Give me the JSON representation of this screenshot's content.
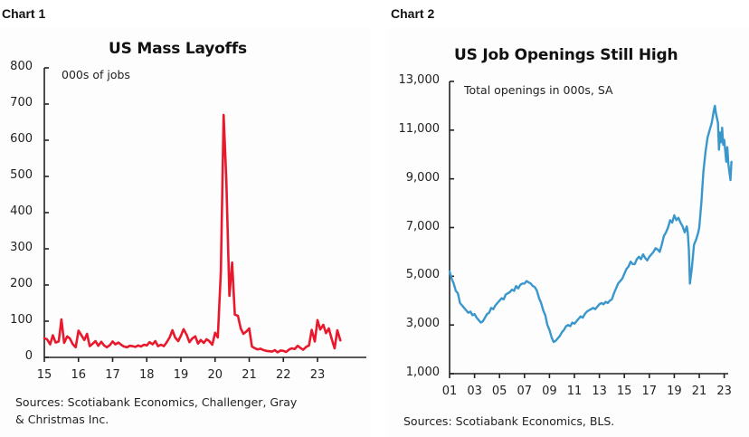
{
  "labels": {
    "chart1": "Chart 1",
    "chart2": "Chart 2"
  },
  "chart_data": [
    {
      "type": "line",
      "title": "US Mass Layoffs",
      "unit_note": "000s of jobs",
      "xlabel": "",
      "ylabel": "",
      "ylim": [
        0,
        800
      ],
      "yticks": [
        "0",
        "100",
        "200",
        "300",
        "400",
        "500",
        "600",
        "700",
        "800"
      ],
      "xticks": [
        "15",
        "16",
        "17",
        "18",
        "19",
        "20",
        "21",
        "22",
        "23"
      ],
      "xlim": [
        2015,
        2023.95
      ],
      "grid": false,
      "source": "Sources: Scotiabank Economics, Challenger, Gray & Christmas Inc.",
      "source_lines": [
        "Sources: Scotiabank Economics, Challenger, Gray",
        "& Christmas Inc."
      ],
      "color": "#e8192c",
      "series": [
        {
          "name": "US Mass Layoffs",
          "points": [
            [
              2015.0,
              53
            ],
            [
              2015.08,
              50
            ],
            [
              2015.17,
              36
            ],
            [
              2015.25,
              61
            ],
            [
              2015.33,
              41
            ],
            [
              2015.42,
              44
            ],
            [
              2015.5,
              105
            ],
            [
              2015.58,
              40
            ],
            [
              2015.67,
              58
            ],
            [
              2015.75,
              52
            ],
            [
              2015.83,
              37
            ],
            [
              2015.92,
              28
            ],
            [
              2016.0,
              74
            ],
            [
              2016.08,
              62
            ],
            [
              2016.17,
              48
            ],
            [
              2016.25,
              65
            ],
            [
              2016.33,
              31
            ],
            [
              2016.42,
              38
            ],
            [
              2016.5,
              45
            ],
            [
              2016.58,
              32
            ],
            [
              2016.67,
              43
            ],
            [
              2016.75,
              33
            ],
            [
              2016.83,
              28
            ],
            [
              2016.92,
              34
            ],
            [
              2017.0,
              44
            ],
            [
              2017.08,
              36
            ],
            [
              2017.17,
              41
            ],
            [
              2017.25,
              35
            ],
            [
              2017.33,
              30
            ],
            [
              2017.42,
              28
            ],
            [
              2017.5,
              32
            ],
            [
              2017.58,
              31
            ],
            [
              2017.67,
              29
            ],
            [
              2017.75,
              33
            ],
            [
              2017.83,
              30
            ],
            [
              2017.92,
              35
            ],
            [
              2018.0,
              33
            ],
            [
              2018.08,
              42
            ],
            [
              2018.17,
              36
            ],
            [
              2018.25,
              45
            ],
            [
              2018.33,
              31
            ],
            [
              2018.42,
              35
            ],
            [
              2018.5,
              31
            ],
            [
              2018.58,
              41
            ],
            [
              2018.67,
              55
            ],
            [
              2018.75,
              75
            ],
            [
              2018.83,
              55
            ],
            [
              2018.92,
              45
            ],
            [
              2019.0,
              60
            ],
            [
              2019.08,
              78
            ],
            [
              2019.17,
              62
            ],
            [
              2019.25,
              42
            ],
            [
              2019.33,
              52
            ],
            [
              2019.42,
              58
            ],
            [
              2019.5,
              38
            ],
            [
              2019.58,
              48
            ],
            [
              2019.67,
              40
            ],
            [
              2019.75,
              50
            ],
            [
              2019.83,
              45
            ],
            [
              2019.92,
              35
            ],
            [
              2020.0,
              68
            ],
            [
              2020.08,
              55
            ],
            [
              2020.17,
              240
            ],
            [
              2020.25,
              670
            ],
            [
              2020.33,
              490
            ],
            [
              2020.42,
              170
            ],
            [
              2020.5,
              262
            ],
            [
              2020.58,
              118
            ],
            [
              2020.67,
              115
            ],
            [
              2020.75,
              80
            ],
            [
              2020.83,
              65
            ],
            [
              2020.92,
              72
            ],
            [
              2021.0,
              80
            ],
            [
              2021.08,
              30
            ],
            [
              2021.17,
              25
            ],
            [
              2021.25,
              22
            ],
            [
              2021.33,
              24
            ],
            [
              2021.42,
              20
            ],
            [
              2021.5,
              18
            ],
            [
              2021.58,
              17
            ],
            [
              2021.67,
              16
            ],
            [
              2021.75,
              20
            ],
            [
              2021.83,
              14
            ],
            [
              2021.92,
              19
            ],
            [
              2022.0,
              18
            ],
            [
              2022.08,
              15
            ],
            [
              2022.17,
              22
            ],
            [
              2022.25,
              25
            ],
            [
              2022.33,
              23
            ],
            [
              2022.42,
              32
            ],
            [
              2022.5,
              26
            ],
            [
              2022.58,
              21
            ],
            [
              2022.67,
              29
            ],
            [
              2022.75,
              33
            ],
            [
              2022.83,
              76
            ],
            [
              2022.92,
              44
            ],
            [
              2023.0,
              103
            ],
            [
              2023.08,
              77
            ],
            [
              2023.17,
              90
            ],
            [
              2023.25,
              67
            ],
            [
              2023.33,
              80
            ],
            [
              2023.42,
              49
            ],
            [
              2023.5,
              25
            ],
            [
              2023.58,
              75
            ],
            [
              2023.67,
              47
            ]
          ]
        }
      ]
    },
    {
      "type": "line",
      "title": "US Job Openings Still High",
      "unit_note": "Total openings in 000s, SA",
      "xlabel": "",
      "ylabel": "",
      "ylim": [
        1000,
        13000
      ],
      "yticks": [
        "1,000",
        "3,000",
        "5,000",
        "7,000",
        "9,000",
        "11,000",
        "13,000"
      ],
      "xticks": [
        "01",
        "03",
        "05",
        "07",
        "09",
        "11",
        "13",
        "15",
        "17",
        "19",
        "21",
        "23"
      ],
      "xlim": [
        2001,
        2023.95
      ],
      "grid": false,
      "source": "Sources: Scotiabank Economics, BLS.",
      "source_lines": [
        "Sources: Scotiabank Economics, BLS."
      ],
      "color": "#3a97cc",
      "series": [
        {
          "name": "Total job openings",
          "points": [
            [
              2001.0,
              5200
            ],
            [
              2001.17,
              4900
            ],
            [
              2001.33,
              4700
            ],
            [
              2001.5,
              4400
            ],
            [
              2001.67,
              4300
            ],
            [
              2001.83,
              3900
            ],
            [
              2002.0,
              3800
            ],
            [
              2002.17,
              3700
            ],
            [
              2002.33,
              3600
            ],
            [
              2002.5,
              3500
            ],
            [
              2002.67,
              3550
            ],
            [
              2002.83,
              3400
            ],
            [
              2003.0,
              3450
            ],
            [
              2003.17,
              3300
            ],
            [
              2003.33,
              3200
            ],
            [
              2003.5,
              3100
            ],
            [
              2003.67,
              3150
            ],
            [
              2003.83,
              3300
            ],
            [
              2004.0,
              3450
            ],
            [
              2004.17,
              3500
            ],
            [
              2004.33,
              3700
            ],
            [
              2004.5,
              3650
            ],
            [
              2004.67,
              3800
            ],
            [
              2004.83,
              3900
            ],
            [
              2005.0,
              4000
            ],
            [
              2005.17,
              4100
            ],
            [
              2005.33,
              4050
            ],
            [
              2005.5,
              4250
            ],
            [
              2005.67,
              4300
            ],
            [
              2005.83,
              4350
            ],
            [
              2006.0,
              4450
            ],
            [
              2006.17,
              4400
            ],
            [
              2006.33,
              4600
            ],
            [
              2006.5,
              4500
            ],
            [
              2006.67,
              4650
            ],
            [
              2006.83,
              4700
            ],
            [
              2007.0,
              4700
            ],
            [
              2007.17,
              4800
            ],
            [
              2007.33,
              4750
            ],
            [
              2007.5,
              4700
            ],
            [
              2007.67,
              4600
            ],
            [
              2007.83,
              4550
            ],
            [
              2008.0,
              4400
            ],
            [
              2008.17,
              4100
            ],
            [
              2008.33,
              3900
            ],
            [
              2008.5,
              3600
            ],
            [
              2008.67,
              3400
            ],
            [
              2008.83,
              3000
            ],
            [
              2009.0,
              2800
            ],
            [
              2009.17,
              2500
            ],
            [
              2009.33,
              2300
            ],
            [
              2009.5,
              2350
            ],
            [
              2009.67,
              2450
            ],
            [
              2009.83,
              2550
            ],
            [
              2010.0,
              2700
            ],
            [
              2010.17,
              2800
            ],
            [
              2010.33,
              2950
            ],
            [
              2010.5,
              3000
            ],
            [
              2010.67,
              2950
            ],
            [
              2010.83,
              3100
            ],
            [
              2011.0,
              3050
            ],
            [
              2011.17,
              3150
            ],
            [
              2011.33,
              3250
            ],
            [
              2011.5,
              3350
            ],
            [
              2011.67,
              3300
            ],
            [
              2011.83,
              3450
            ],
            [
              2012.0,
              3550
            ],
            [
              2012.17,
              3600
            ],
            [
              2012.33,
              3650
            ],
            [
              2012.5,
              3700
            ],
            [
              2012.67,
              3650
            ],
            [
              2012.83,
              3750
            ],
            [
              2013.0,
              3850
            ],
            [
              2013.17,
              3900
            ],
            [
              2013.33,
              3850
            ],
            [
              2013.5,
              3950
            ],
            [
              2013.67,
              3900
            ],
            [
              2013.83,
              4000
            ],
            [
              2014.0,
              4050
            ],
            [
              2014.17,
              4300
            ],
            [
              2014.33,
              4500
            ],
            [
              2014.5,
              4700
            ],
            [
              2014.67,
              4800
            ],
            [
              2014.83,
              4900
            ],
            [
              2015.0,
              5100
            ],
            [
              2015.17,
              5300
            ],
            [
              2015.33,
              5400
            ],
            [
              2015.5,
              5600
            ],
            [
              2015.67,
              5500
            ],
            [
              2015.83,
              5500
            ],
            [
              2016.0,
              5700
            ],
            [
              2016.17,
              5800
            ],
            [
              2016.33,
              5700
            ],
            [
              2016.5,
              5900
            ],
            [
              2016.67,
              5750
            ],
            [
              2016.83,
              5650
            ],
            [
              2017.0,
              5800
            ],
            [
              2017.17,
              5900
            ],
            [
              2017.33,
              6000
            ],
            [
              2017.5,
              6150
            ],
            [
              2017.67,
              6100
            ],
            [
              2017.83,
              6000
            ],
            [
              2018.0,
              6300
            ],
            [
              2018.17,
              6650
            ],
            [
              2018.33,
              6800
            ],
            [
              2018.5,
              7000
            ],
            [
              2018.67,
              7300
            ],
            [
              2018.83,
              7200
            ],
            [
              2019.0,
              7500
            ],
            [
              2019.17,
              7300
            ],
            [
              2019.33,
              7400
            ],
            [
              2019.5,
              7200
            ],
            [
              2019.67,
              7050
            ],
            [
              2019.83,
              6800
            ],
            [
              2020.0,
              7050
            ],
            [
              2020.08,
              6800
            ],
            [
              2020.17,
              6100
            ],
            [
              2020.25,
              4700
            ],
            [
              2020.42,
              5400
            ],
            [
              2020.58,
              6300
            ],
            [
              2020.75,
              6500
            ],
            [
              2020.92,
              6800
            ],
            [
              2021.0,
              7000
            ],
            [
              2021.17,
              8000
            ],
            [
              2021.33,
              9300
            ],
            [
              2021.5,
              10100
            ],
            [
              2021.67,
              10700
            ],
            [
              2021.83,
              11000
            ],
            [
              2022.0,
              11300
            ],
            [
              2022.17,
              11800
            ],
            [
              2022.25,
              12000
            ],
            [
              2022.33,
              11700
            ],
            [
              2022.5,
              11300
            ],
            [
              2022.58,
              10200
            ],
            [
              2022.67,
              10900
            ],
            [
              2022.75,
              10500
            ],
            [
              2022.83,
              11100
            ],
            [
              2022.92,
              10400
            ],
            [
              2023.0,
              10600
            ],
            [
              2023.17,
              9700
            ],
            [
              2023.25,
              10300
            ],
            [
              2023.33,
              9600
            ],
            [
              2023.5,
              8950
            ],
            [
              2023.58,
              9700
            ]
          ]
        }
      ]
    }
  ]
}
